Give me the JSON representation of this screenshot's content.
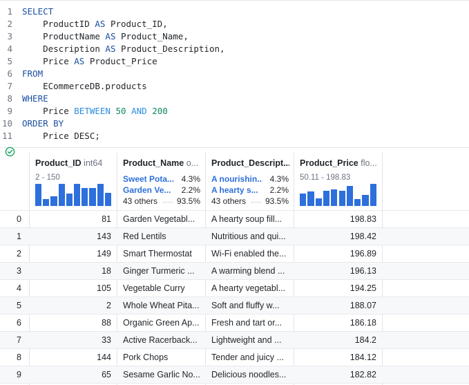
{
  "editor": {
    "lines": [
      {
        "n": "1",
        "tokens": [
          {
            "t": "SELECT",
            "k": "kw"
          }
        ]
      },
      {
        "n": "2",
        "tokens": [
          {
            "t": "    ProductID ",
            "k": "plain"
          },
          {
            "t": "AS",
            "k": "kw"
          },
          {
            "t": " Product_ID,",
            "k": "plain"
          }
        ]
      },
      {
        "n": "3",
        "tokens": [
          {
            "t": "    ProductName ",
            "k": "plain"
          },
          {
            "t": "AS",
            "k": "kw"
          },
          {
            "t": " Product_Name,",
            "k": "plain"
          }
        ]
      },
      {
        "n": "4",
        "tokens": [
          {
            "t": "    Description ",
            "k": "plain"
          },
          {
            "t": "AS",
            "k": "kw"
          },
          {
            "t": " Product_Description,",
            "k": "plain"
          }
        ]
      },
      {
        "n": "5",
        "tokens": [
          {
            "t": "    Price ",
            "k": "plain"
          },
          {
            "t": "AS",
            "k": "kw"
          },
          {
            "t": " Product_Price",
            "k": "plain"
          }
        ]
      },
      {
        "n": "6",
        "tokens": [
          {
            "t": "FROM",
            "k": "kw"
          }
        ]
      },
      {
        "n": "7",
        "tokens": [
          {
            "t": "    ECommerceDB.products",
            "k": "plain"
          }
        ]
      },
      {
        "n": "8",
        "tokens": [
          {
            "t": "WHERE",
            "k": "kw"
          }
        ]
      },
      {
        "n": "9",
        "tokens": [
          {
            "t": "    Price ",
            "k": "plain"
          },
          {
            "t": "BETWEEN",
            "k": "op"
          },
          {
            "t": " ",
            "k": "plain"
          },
          {
            "t": "50",
            "k": "num"
          },
          {
            "t": " ",
            "k": "plain"
          },
          {
            "t": "AND",
            "k": "op"
          },
          {
            "t": " ",
            "k": "plain"
          },
          {
            "t": "200",
            "k": "num"
          }
        ]
      },
      {
        "n": "10",
        "tokens": [
          {
            "t": "ORDER BY",
            "k": "kw"
          }
        ]
      },
      {
        "n": "11",
        "tokens": [
          {
            "t": "    Price DESC;",
            "k": "plain"
          }
        ]
      }
    ]
  },
  "status": {
    "icon": "check-circle-icon",
    "color": "#1aa260"
  },
  "colors": {
    "accent": "#2d6fdc",
    "keyword": "#1a4fa0",
    "operator": "#2b8de0",
    "number": "#0e8a5c"
  },
  "columns": {
    "product_id": {
      "name": "Product_ID",
      "dtype": "int64",
      "range": "2 - 150",
      "histogram": [
        1.0,
        0.3,
        0.45,
        1.0,
        0.55,
        1.0,
        0.8,
        0.8,
        1.0,
        0.6
      ]
    },
    "product_name": {
      "name": "Product_Name",
      "dtype": "o...",
      "top": [
        {
          "label": "Sweet Pota...",
          "pct": "4.3%"
        },
        {
          "label": "Garden Ve...",
          "pct": "2.2%"
        }
      ],
      "others": {
        "label": "43 others",
        "pct": "93.5%"
      }
    },
    "product_description": {
      "name": "Product_Descript...",
      "dtype": "",
      "top": [
        {
          "label": "A nourishin...",
          "pct": "4.3%"
        },
        {
          "label": "A hearty s...",
          "pct": "2.2%"
        }
      ],
      "others": {
        "label": "43 others",
        "pct": "93.5%"
      }
    },
    "product_price": {
      "name": "Product_Price",
      "dtype": "flo...",
      "range": "50.11 - 198.83",
      "histogram": [
        0.55,
        0.65,
        0.35,
        0.7,
        0.75,
        0.7,
        0.9,
        0.3,
        0.5,
        1.0
      ]
    }
  },
  "rows": [
    {
      "index": "0",
      "id": "81",
      "name": "Garden Vegetabl...",
      "desc": "A hearty soup fill...",
      "price": "198.83"
    },
    {
      "index": "1",
      "id": "143",
      "name": "Red Lentils",
      "desc": "Nutritious and qui...",
      "price": "198.42"
    },
    {
      "index": "2",
      "id": "149",
      "name": "Smart Thermostat",
      "desc": "Wi-Fi enabled the...",
      "price": "196.89"
    },
    {
      "index": "3",
      "id": "18",
      "name": "Ginger Turmeric ...",
      "desc": "A warming blend ...",
      "price": "196.13"
    },
    {
      "index": "4",
      "id": "105",
      "name": "Vegetable Curry",
      "desc": "A hearty vegetabl...",
      "price": "194.25"
    },
    {
      "index": "5",
      "id": "2",
      "name": "Whole Wheat Pita...",
      "desc": "Soft and fluffy w...",
      "price": "188.07"
    },
    {
      "index": "6",
      "id": "88",
      "name": "Organic Green Ap...",
      "desc": "Fresh and tart or...",
      "price": "186.18"
    },
    {
      "index": "7",
      "id": "33",
      "name": "Active Racerback...",
      "desc": "Lightweight and ...",
      "price": "184.2"
    },
    {
      "index": "8",
      "id": "144",
      "name": "Pork Chops",
      "desc": "Tender and juicy ...",
      "price": "184.12"
    },
    {
      "index": "9",
      "id": "65",
      "name": "Sesame Garlic No...",
      "desc": "Delicious noodles...",
      "price": "182.82"
    }
  ]
}
